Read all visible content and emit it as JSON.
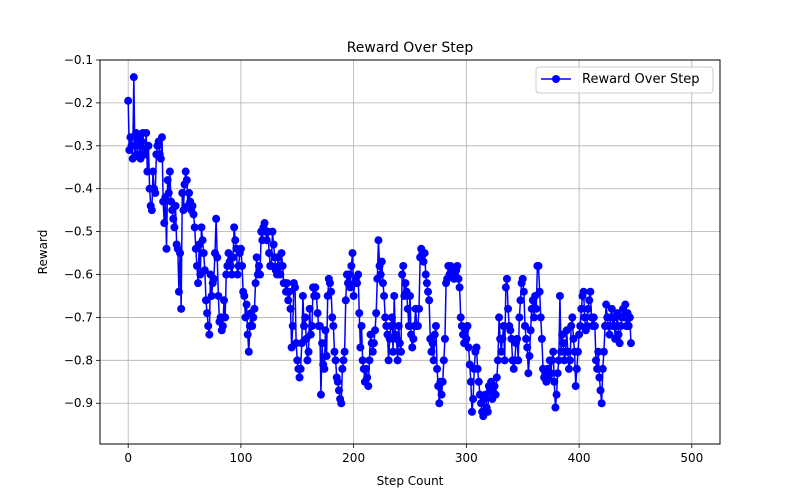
{
  "chart_data": {
    "type": "line",
    "title": "Reward Over Step",
    "xlabel": "Step Count",
    "ylabel": "Reward",
    "xlim": [
      -25,
      525
    ],
    "ylim": [
      -0.995,
      -0.1
    ],
    "xticks": [
      0,
      100,
      200,
      300,
      400,
      500
    ],
    "yticks": [
      -0.9,
      -0.8,
      -0.7,
      -0.6,
      -0.5,
      -0.4,
      -0.3,
      -0.2,
      -0.1
    ],
    "grid": true,
    "legend_position": "top-right",
    "series": [
      {
        "name": "Reward Over Step",
        "color": "#0000ff",
        "marker": "circle",
        "x_start": 0,
        "x_step": 1,
        "values": [
          -0.195,
          -0.31,
          -0.28,
          -0.3,
          -0.33,
          -0.14,
          -0.325,
          -0.27,
          -0.32,
          -0.28,
          -0.3,
          -0.33,
          -0.29,
          -0.27,
          -0.31,
          -0.32,
          -0.27,
          -0.36,
          -0.3,
          -0.4,
          -0.44,
          -0.45,
          -0.36,
          -0.4,
          -0.41,
          -0.32,
          -0.3,
          -0.29,
          -0.32,
          -0.33,
          -0.28,
          -0.43,
          -0.48,
          -0.42,
          -0.54,
          -0.38,
          -0.41,
          -0.36,
          -0.43,
          -0.45,
          -0.47,
          -0.49,
          -0.44,
          -0.53,
          -0.54,
          -0.64,
          -0.55,
          -0.68,
          -0.41,
          -0.45,
          -0.39,
          -0.36,
          -0.38,
          -0.44,
          -0.41,
          -0.43,
          -0.45,
          -0.44,
          -0.46,
          -0.49,
          -0.54,
          -0.58,
          -0.62,
          -0.53,
          -0.6,
          -0.49,
          -0.52,
          -0.55,
          -0.59,
          -0.66,
          -0.69,
          -0.72,
          -0.74,
          -0.6,
          -0.65,
          -0.62,
          -0.61,
          -0.55,
          -0.47,
          -0.56,
          -0.65,
          -0.71,
          -0.7,
          -0.73,
          -0.72,
          -0.66,
          -0.7,
          -0.6,
          -0.58,
          -0.55,
          -0.57,
          -0.58,
          -0.6,
          -0.56,
          -0.49,
          -0.52,
          -0.54,
          -0.6,
          -0.58,
          -0.55,
          -0.54,
          -0.58,
          -0.64,
          -0.65,
          -0.7,
          -0.67,
          -0.74,
          -0.78,
          -0.72,
          -0.69,
          -0.72,
          -0.7,
          -0.68,
          -0.62,
          -0.56,
          -0.6,
          -0.58,
          -0.6,
          -0.5,
          -0.52,
          -0.49,
          -0.48,
          -0.5,
          -0.52,
          -0.5,
          -0.55,
          -0.58,
          -0.58,
          -0.5,
          -0.53,
          -0.56,
          -0.59,
          -0.6,
          -0.56,
          -0.58,
          -0.6,
          -0.55,
          -0.58,
          -0.62,
          -0.62,
          -0.64,
          -0.62,
          -0.66,
          -0.64,
          -0.68,
          -0.77,
          -0.72,
          -0.62,
          -0.63,
          -0.76,
          -0.8,
          -0.82,
          -0.84,
          -0.82,
          -0.76,
          -0.65,
          -0.72,
          -0.7,
          -0.75,
          -0.8,
          -0.78,
          -0.68,
          -0.74,
          -0.72,
          -0.63,
          -0.65,
          -0.63,
          -0.65,
          -0.69,
          -0.72,
          -0.72,
          -0.88,
          -0.76,
          -0.81,
          -0.82,
          -0.73,
          -0.79,
          -0.65,
          -0.61,
          -0.62,
          -0.64,
          -0.7,
          -0.72,
          -0.78,
          -0.8,
          -0.84,
          -0.85,
          -0.87,
          -0.89,
          -0.9,
          -0.82,
          -0.8,
          -0.78,
          -0.66,
          -0.6,
          -0.62,
          -0.6,
          -0.63,
          -0.58,
          -0.55,
          -0.65,
          -0.62,
          -0.61,
          -0.62,
          -0.6,
          -0.69,
          -0.77,
          -0.72,
          -0.8,
          -0.82,
          -0.85,
          -0.82,
          -0.84,
          -0.86,
          -0.8,
          -0.74,
          -0.76,
          -0.78,
          -0.76,
          -0.73,
          -0.69,
          -0.61,
          -0.52,
          -0.58,
          -0.6,
          -0.57,
          -0.62,
          -0.65,
          -0.7,
          -0.72,
          -0.74,
          -0.8,
          -0.75,
          -0.72,
          -0.7,
          -0.78,
          -0.65,
          -0.74,
          -0.75,
          -0.8,
          -0.72,
          -0.76,
          -0.78,
          -0.6,
          -0.58,
          -0.65,
          -0.62,
          -0.64,
          -0.68,
          -0.72,
          -0.65,
          -0.74,
          -0.77,
          -0.75,
          -0.72,
          -0.68,
          -0.72,
          -0.72,
          -0.68,
          -0.56,
          -0.54,
          -0.55,
          -0.57,
          -0.55,
          -0.6,
          -0.62,
          -0.64,
          -0.66,
          -0.75,
          -0.78,
          -0.76,
          -0.8,
          -0.74,
          -0.72,
          -0.82,
          -0.86,
          -0.9,
          -0.85,
          -0.88,
          -0.85,
          -0.8,
          -0.75,
          -0.62,
          -0.61,
          -0.58,
          -0.6,
          -0.58,
          -0.59,
          -0.6,
          -0.61,
          -0.6,
          -0.59,
          -0.58,
          -0.61,
          -0.63,
          -0.7,
          -0.72,
          -0.74,
          -0.76,
          -0.73,
          -0.75,
          -0.72,
          -0.77,
          -0.81,
          -0.85,
          -0.92,
          -0.89,
          -0.82,
          -0.78,
          -0.77,
          -0.82,
          -0.85,
          -0.88,
          -0.9,
          -0.92,
          -0.93,
          -0.89,
          -0.88,
          -0.91,
          -0.92,
          -0.86,
          -0.87,
          -0.85,
          -0.89,
          -0.88,
          -0.86,
          -0.88,
          -0.84,
          -0.8,
          -0.7,
          -0.75,
          -0.78,
          -0.75,
          -0.72,
          -0.8,
          -0.63,
          -0.61,
          -0.68,
          -0.72,
          -0.73,
          -0.75,
          -0.8,
          -0.82,
          -0.8,
          -0.76,
          -0.75,
          -0.8,
          -0.7,
          -0.66,
          -0.62,
          -0.61,
          -0.64,
          -0.72,
          -0.75,
          -0.77,
          -0.83,
          -0.79,
          -0.73,
          -0.68,
          -0.66,
          -0.7,
          -0.65,
          -0.68,
          -0.58,
          -0.58,
          -0.64,
          -0.7,
          -0.75,
          -0.82,
          -0.84,
          -0.83,
          -0.85,
          -0.82,
          -0.84,
          -0.8,
          -0.83,
          -0.8,
          -0.78,
          -0.85,
          -0.91,
          -0.88,
          -0.83,
          -0.8,
          -0.65,
          -0.78,
          -0.74,
          -0.76,
          -0.8,
          -0.78,
          -0.73,
          -0.78,
          -0.82,
          -0.8,
          -0.72,
          -0.7,
          -0.75,
          -0.78,
          -0.86,
          -0.82,
          -0.78,
          -0.74,
          -0.72,
          -0.68,
          -0.65,
          -0.64,
          -0.7,
          -0.73,
          -0.72,
          -0.68,
          -0.66,
          -0.64,
          -0.7,
          -0.72,
          -0.7,
          -0.72,
          -0.8,
          -0.82,
          -0.78,
          -0.84,
          -0.87,
          -0.9,
          -0.82,
          -0.78,
          -0.72,
          -0.67,
          -0.7,
          -0.72,
          -0.74,
          -0.7,
          -0.68,
          -0.72,
          -0.7,
          -0.75,
          -0.72,
          -0.69,
          -0.74,
          -0.76,
          -0.72,
          -0.7,
          -0.68,
          -0.7,
          -0.67,
          -0.72,
          -0.69,
          -0.72,
          -0.7,
          -0.76
        ]
      }
    ]
  }
}
